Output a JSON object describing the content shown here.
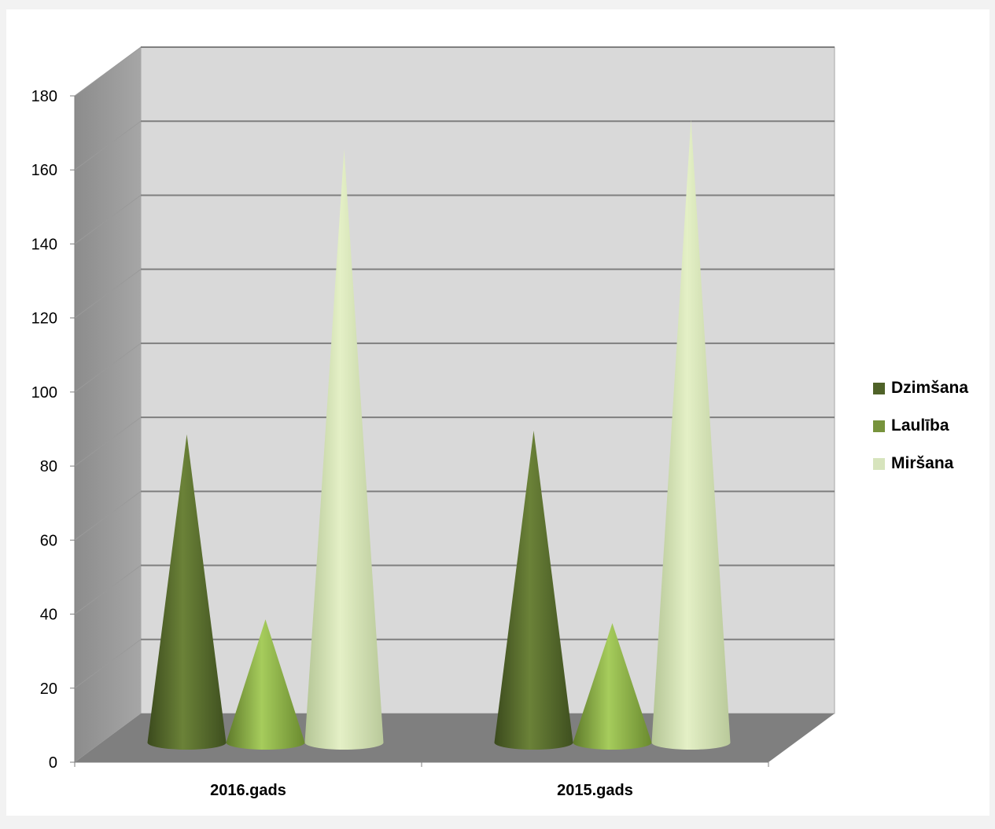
{
  "chart_data": {
    "type": "bar",
    "subtype": "3d-cone",
    "categories": [
      "2016.gads",
      "2015.gads"
    ],
    "series": [
      {
        "name": "Dzimšana",
        "values": [
          82,
          83
        ],
        "color": "#4f6228"
      },
      {
        "name": "Laulība",
        "values": [
          32,
          31
        ],
        "color": "#77933c"
      },
      {
        "name": "Miršana",
        "values": [
          159,
          167
        ],
        "color": "#d7e4bd"
      }
    ],
    "ylim": [
      0,
      180
    ],
    "yticks": [
      "0",
      "20",
      "40",
      "60",
      "80",
      "100",
      "120",
      "140",
      "160",
      "180"
    ],
    "grid": true,
    "legend_position": "right",
    "title": "",
    "xlabel": "",
    "ylabel": ""
  }
}
